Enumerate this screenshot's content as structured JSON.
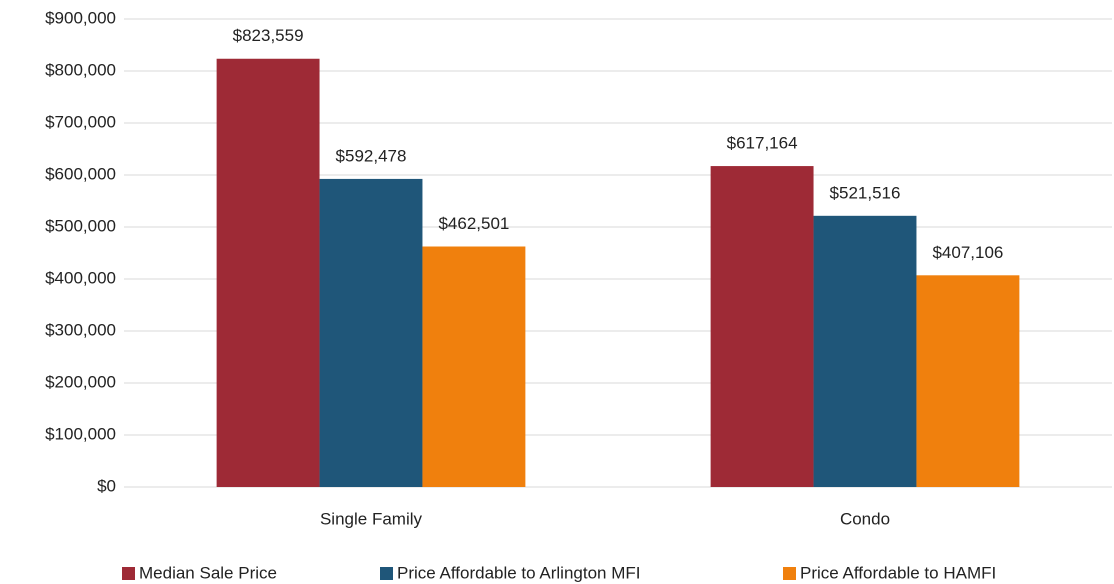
{
  "chart_data": {
    "type": "bar",
    "categories": [
      "Single Family",
      "Condo"
    ],
    "series": [
      {
        "name": "Median Sale Price",
        "color": "#9e2a36",
        "values": [
          823559,
          617164
        ],
        "value_labels": [
          "$823,559",
          "$617,164"
        ]
      },
      {
        "name": "Price Affordable to Arlington MFI",
        "color": "#1f5679",
        "values": [
          592478,
          521516
        ],
        "value_labels": [
          "$592,478",
          "$521,516"
        ]
      },
      {
        "name": "Price Affordable to HAMFI",
        "color": "#f0800d",
        "values": [
          462501,
          407106
        ],
        "value_labels": [
          "$462,501",
          "$407,106"
        ]
      }
    ],
    "ylim": [
      0,
      900000
    ],
    "yticks": [
      {
        "value": 0,
        "label": "$0"
      },
      {
        "value": 100000,
        "label": "$100,000"
      },
      {
        "value": 200000,
        "label": "$200,000"
      },
      {
        "value": 300000,
        "label": "$300,000"
      },
      {
        "value": 400000,
        "label": "$400,000"
      },
      {
        "value": 500000,
        "label": "$500,000"
      },
      {
        "value": 600000,
        "label": "$600,000"
      },
      {
        "value": 700000,
        "label": "$700,000"
      },
      {
        "value": 800000,
        "label": "$800,000"
      },
      {
        "value": 900000,
        "label": "$900,000"
      }
    ],
    "grid": true,
    "legend": "bottom"
  }
}
